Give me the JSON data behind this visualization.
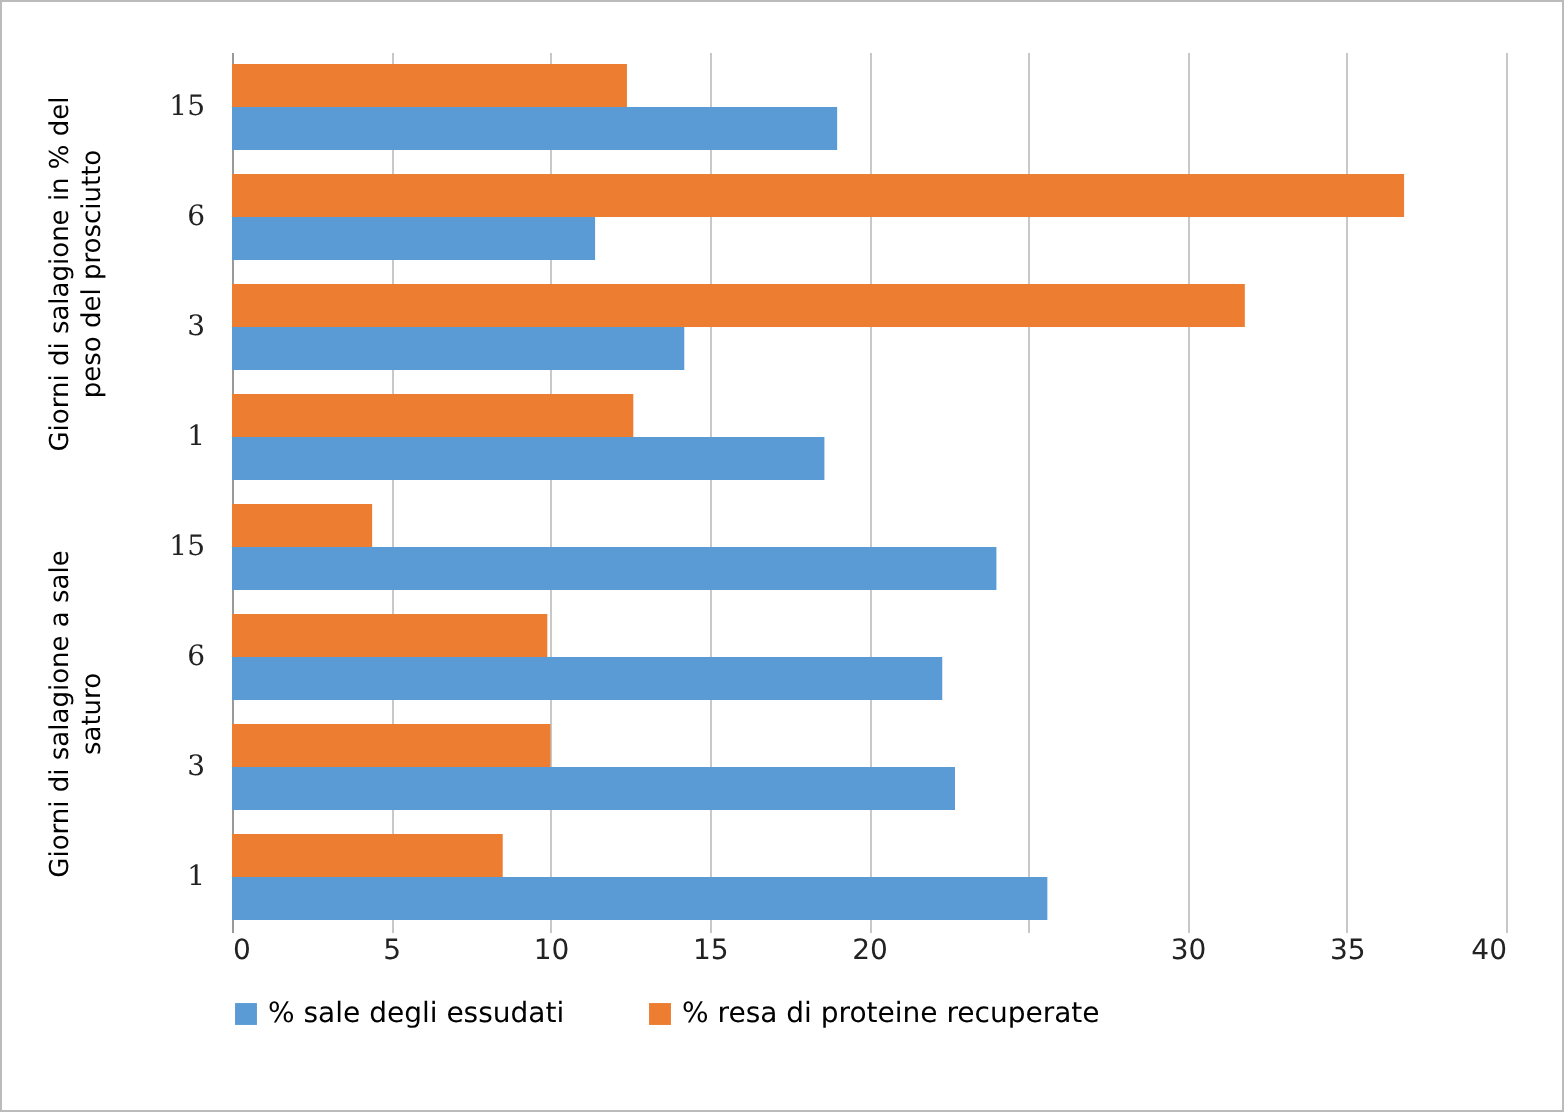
{
  "chart_data": {
    "type": "bar",
    "orientation": "horizontal",
    "categories": [
      "15",
      "6",
      "3",
      "1",
      "15",
      "6",
      "3",
      "1"
    ],
    "series": [
      {
        "name": "% sale degli essudati",
        "color": "#5b9bd5",
        "values": [
          19,
          11.4,
          14.2,
          18.6,
          24,
          22.3,
          22.7,
          25.6
        ]
      },
      {
        "name": "% resa di proteine recuperate",
        "color": "#ed7d31",
        "values": [
          12.4,
          36.8,
          31.8,
          12.6,
          4.4,
          9.9,
          10,
          8.5
        ]
      }
    ],
    "xlim": [
      0,
      40
    ],
    "xticks": [
      0,
      5,
      10,
      15,
      20,
      {
        "value": 25,
        "label": null
      },
      30,
      35,
      40
    ],
    "grid": "x",
    "legend": "bottom",
    "annotations": [
      "Giorni di salagione in % del peso del prosciutto",
      "Giorni di salagione a sale saturo"
    ]
  }
}
